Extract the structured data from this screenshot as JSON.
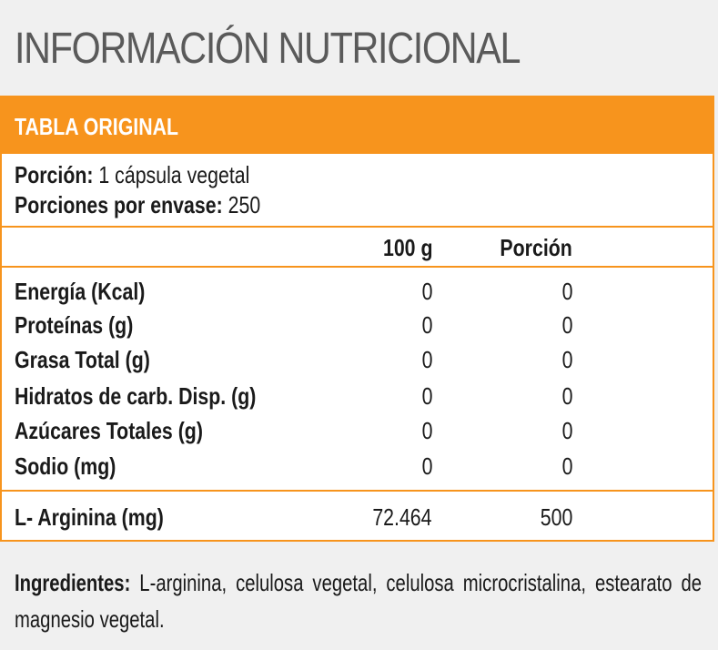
{
  "title": "INFORMACIÓN NUTRICIONAL",
  "table": {
    "header": "TABLA ORIGINAL",
    "portion_label": "Porción:",
    "portion_value": "1 cápsula vegetal",
    "servings_label": "Porciones por envase:",
    "servings_value": "250",
    "columns": [
      "100 g",
      "Porción"
    ],
    "rows": [
      {
        "name": "Energía (Kcal)",
        "per100": "0",
        "portion": "0"
      },
      {
        "name": "Proteínas (g)",
        "per100": "0",
        "portion": "0"
      },
      {
        "name": "Grasa Total (g)",
        "per100": "0",
        "portion": "0"
      },
      {
        "name": "Hidratos de carb. Disp. (g)",
        "per100": "0",
        "portion": "0"
      },
      {
        "name": "Azúcares Totales (g)",
        "per100": "0",
        "portion": "0"
      },
      {
        "name": "Sodio (mg)",
        "per100": "0",
        "portion": "0"
      }
    ],
    "special_row": {
      "name": "L- Arginina (mg)",
      "per100": "72.464",
      "portion": "500"
    }
  },
  "ingredients": {
    "label": "Ingredientes:",
    "text": "L-arginina, celulosa vegetal, celulosa microcristalina, estearato de magnesio vegetal."
  },
  "colors": {
    "accent": "#f7941d",
    "title": "#5a5a5a",
    "background": "#f0f0f0"
  }
}
